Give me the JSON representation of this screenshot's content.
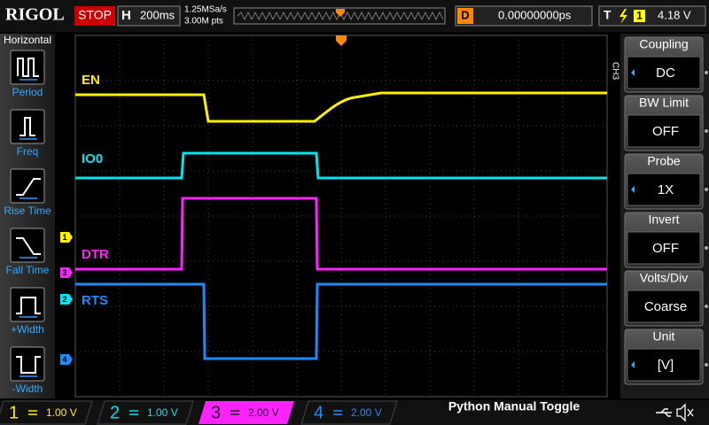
{
  "header": {
    "brand": "RIGOL",
    "status": "STOP",
    "timebase_label": "H",
    "timebase": "200ms",
    "sample_rate": "1.25MSa/s",
    "memory_depth": "3.00M pts",
    "delay_label": "D",
    "delay": "0.00000000ps",
    "trigger_label": "T",
    "trigger_source": "1",
    "trigger_level": "4.18 V"
  },
  "left_menu": {
    "title": "Horizontal",
    "items": [
      "Period",
      "Freq",
      "Rise Time",
      "Fall Time",
      "+Width",
      "-Width"
    ]
  },
  "right_menu": {
    "channel": "CH3",
    "items": [
      {
        "label": "Coupling",
        "value": "DC"
      },
      {
        "label": "BW Limit",
        "value": "OFF"
      },
      {
        "label": "Probe",
        "value": "1X"
      },
      {
        "label": "Invert",
        "value": "OFF"
      },
      {
        "label": "Volts/Div",
        "value": "Coarse"
      },
      {
        "label": "Unit",
        "value": "[V]"
      }
    ]
  },
  "traces": [
    {
      "label": "EN"
    },
    {
      "label": "IO0"
    },
    {
      "label": "DTR"
    },
    {
      "label": "RTS"
    }
  ],
  "markers": [
    "1",
    "3",
    "2",
    "4"
  ],
  "footer": {
    "channels": [
      {
        "number": "1",
        "scale": "1.00 V"
      },
      {
        "number": "2",
        "scale": "1.00 V"
      },
      {
        "number": "3",
        "scale": "2.00 V"
      },
      {
        "number": "4",
        "scale": "2.00 V"
      }
    ],
    "label": "Python Manual Toggle"
  }
}
